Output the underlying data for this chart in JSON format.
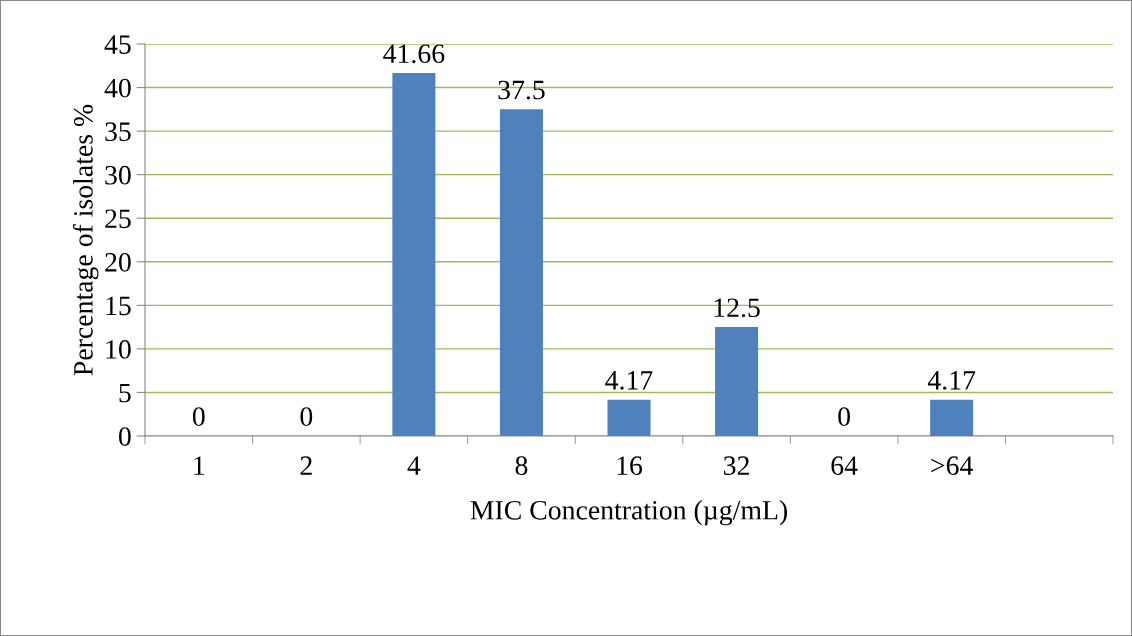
{
  "chart_data": {
    "type": "bar",
    "xlabel": "MIC Concentration (µg/mL)",
    "ylabel": "Percentage of isolates %",
    "categories": [
      "1",
      "2",
      "4",
      "8",
      "16",
      "32",
      "64",
      ">64",
      null
    ],
    "values": [
      0,
      0,
      41.66,
      37.5,
      4.17,
      12.5,
      0,
      4.17,
      null
    ],
    "color": "#4f81bd",
    "ylim": [
      0,
      45
    ],
    "yticks": [
      0,
      5,
      10,
      15,
      20,
      25,
      30,
      35,
      40,
      45
    ],
    "grid": "y",
    "data_labels": true,
    "legend": false
  }
}
